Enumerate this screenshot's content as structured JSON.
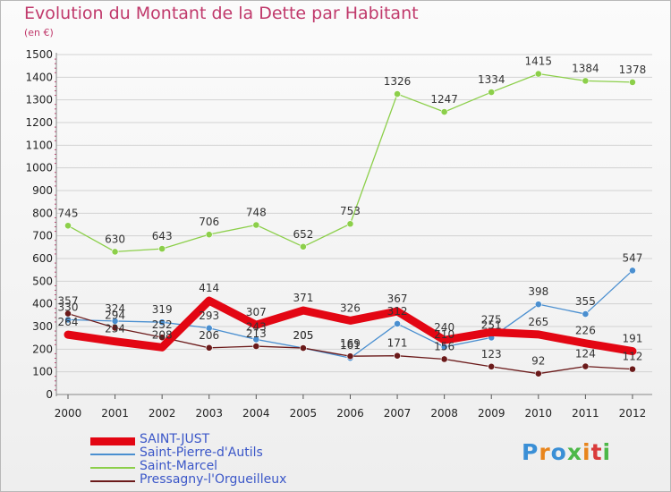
{
  "title": "Evolution du Montant de la Dette par Habitant",
  "unit_label": "(en €)",
  "logo": "Proxiti",
  "chart_data": {
    "type": "line",
    "title": "Evolution du Montant de la Dette par Habitant",
    "ylabel": "(en €)",
    "xlabel": "",
    "ylim": [
      0,
      1500
    ],
    "yticks": [
      0,
      100,
      200,
      300,
      400,
      500,
      600,
      700,
      800,
      900,
      1000,
      1100,
      1200,
      1300,
      1400,
      1500
    ],
    "grid": "horizontal",
    "legend_position": "bottom-left",
    "categories": [
      "2000",
      "2001",
      "2002",
      "2003",
      "2004",
      "2005",
      "2006",
      "2007",
      "2008",
      "2009",
      "2010",
      "2011",
      "2012"
    ],
    "series": [
      {
        "name": "SAINT-JUST",
        "color": "#e30613",
        "values": [
          264,
          234,
          208,
          414,
          307,
          371,
          326,
          367,
          240,
          275,
          265,
          226,
          191
        ],
        "labels": true
      },
      {
        "name": "Saint-Pierre-d'Autils",
        "color": "#4a8fd0",
        "values": [
          330,
          324,
          319,
          293,
          243,
          205,
          161,
          312,
          210,
          251,
          398,
          355,
          547
        ],
        "labels": true
      },
      {
        "name": "Saint-Marcel",
        "color": "#8ccf4a",
        "values": [
          745,
          630,
          643,
          706,
          748,
          652,
          753,
          1326,
          1247,
          1334,
          1415,
          1384,
          1378
        ],
        "labels": true
      },
      {
        "name": "Pressagny-l'Orgueilleux",
        "color": "#6b1a1a",
        "values": [
          357,
          294,
          252,
          206,
          213,
          205,
          169,
          171,
          156,
          123,
          92,
          124,
          112
        ],
        "labels": true
      }
    ]
  }
}
